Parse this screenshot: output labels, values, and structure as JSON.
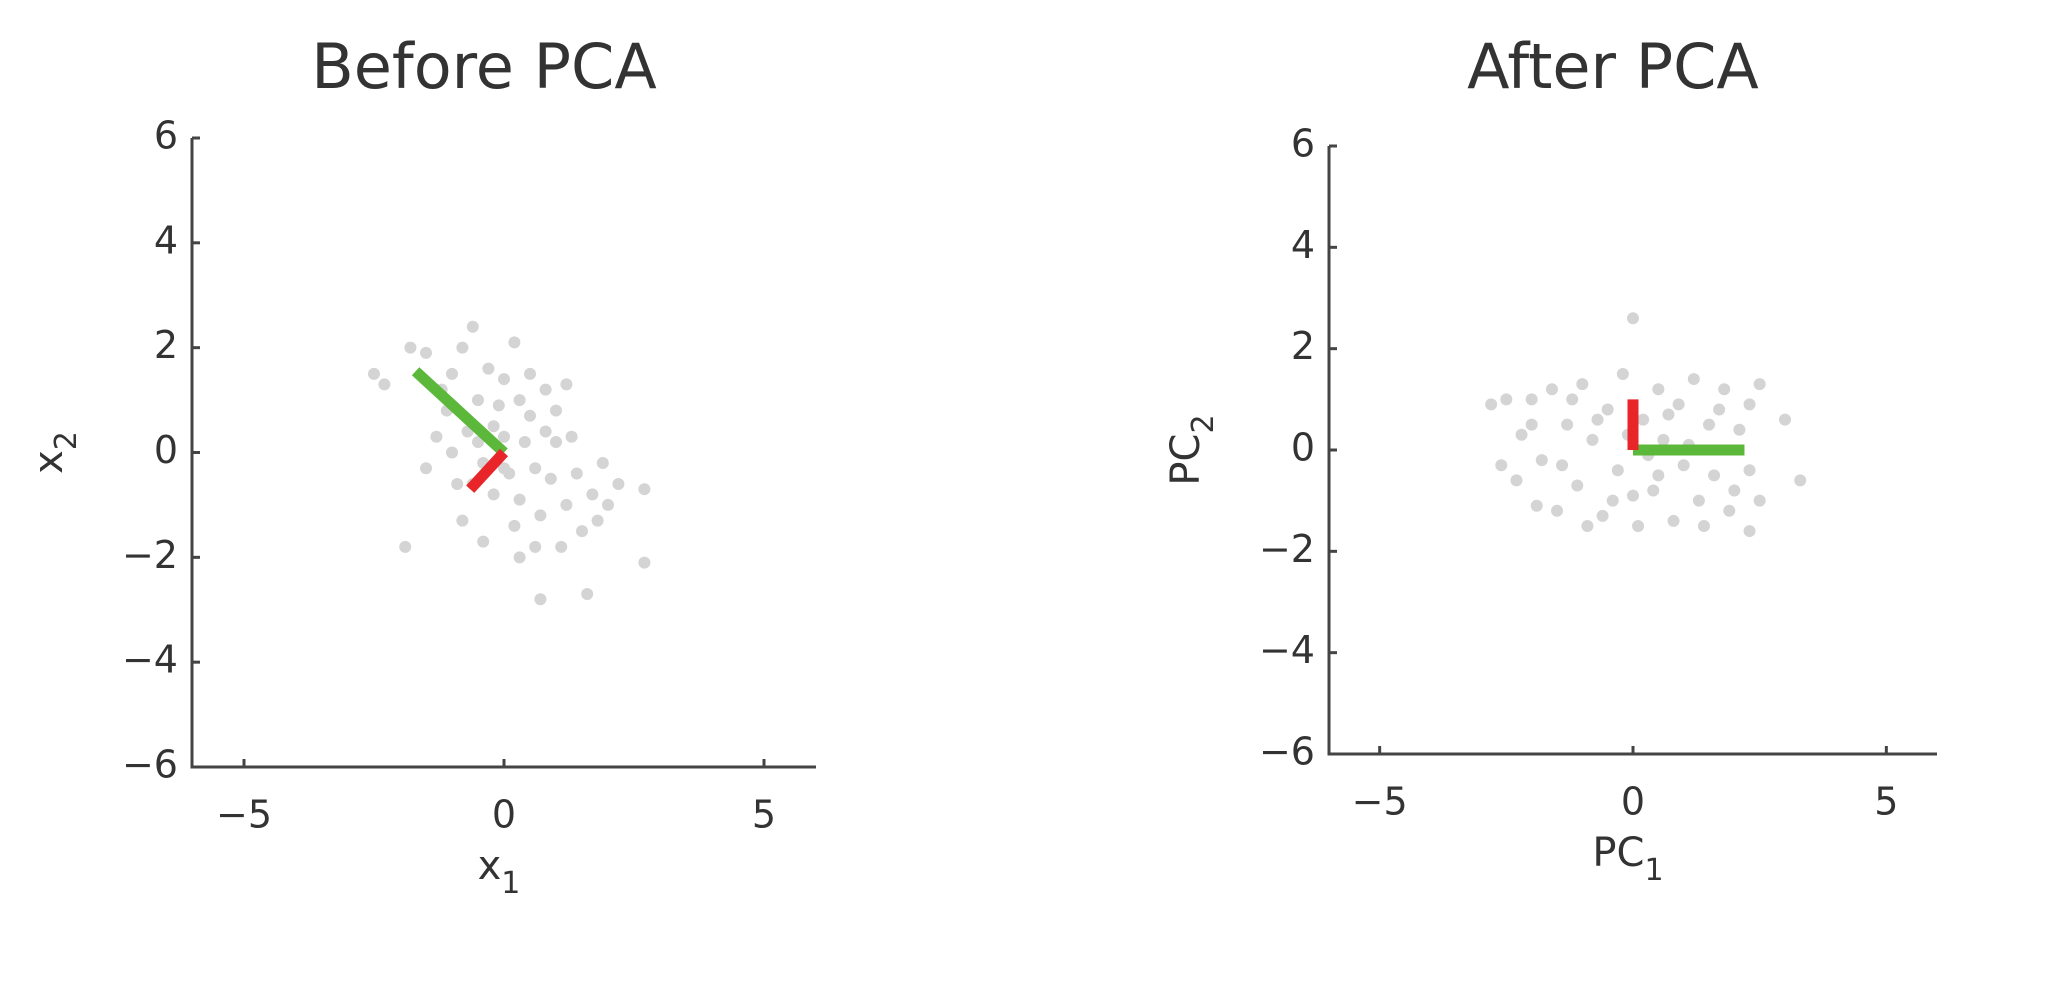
{
  "chart_data": [
    {
      "type": "scatter",
      "title": "Before PCA",
      "x_label": {
        "text": "x",
        "sub": "1"
      },
      "y_label": {
        "text": "x",
        "sub": "2"
      },
      "xlim": [
        -6,
        6
      ],
      "ylim": [
        -6,
        6
      ],
      "xticks": [
        {
          "value": -5,
          "label": "−5"
        },
        0,
        5
      ],
      "yticks": [
        {
          "value": -6,
          "label": "−6"
        },
        {
          "value": -4,
          "label": "−4"
        },
        {
          "value": -2,
          "label": "−2"
        },
        0,
        2,
        4,
        6
      ],
      "points": {
        "color": "#d4d4d4",
        "x": [
          -2.5,
          -2.3,
          -1.8,
          -1.5,
          -1.2,
          -1.0,
          -0.8,
          -0.6,
          -0.5,
          -0.3,
          -0.2,
          0,
          0.2,
          0.3,
          0.5,
          0.8,
          1.0,
          1.2,
          -1.9,
          -1.5,
          -1.3,
          -1.0,
          -0.9,
          -0.7,
          -0.4,
          -0.2,
          0,
          0.1,
          0.3,
          0.4,
          0.6,
          0.7,
          0.9,
          1.0,
          1.2,
          1.4,
          1.5,
          1.7,
          1.9,
          2.0,
          2.2,
          2.7,
          2.7,
          1.6,
          0.7,
          0.3,
          -0.4,
          -0.8,
          0.5,
          -0.5,
          1.1,
          0.2,
          -1.1,
          0.8,
          1.3,
          -0.1,
          0.6,
          1.8,
          -0.6,
          0.0
        ],
        "y": [
          1.5,
          1.3,
          2.0,
          1.9,
          1.2,
          1.5,
          2.0,
          2.4,
          1.0,
          1.6,
          0.5,
          1.4,
          2.1,
          1.0,
          1.5,
          1.2,
          0.8,
          1.3,
          -1.8,
          -0.3,
          0.3,
          0.0,
          -0.6,
          0.4,
          -0.2,
          -0.8,
          0.3,
          -0.4,
          -0.9,
          0.2,
          -0.3,
          -1.2,
          -0.5,
          0.2,
          -1.0,
          -0.4,
          -1.5,
          -0.8,
          -0.2,
          -1.0,
          -0.6,
          -0.7,
          -2.1,
          -2.7,
          -2.8,
          -2.0,
          -1.7,
          -1.3,
          0.7,
          0.2,
          -1.8,
          -1.4,
          0.8,
          0.4,
          0.3,
          0.9,
          -1.8,
          -1.3,
          -0.6,
          -0.3
        ]
      },
      "vectors": [
        {
          "color": "#5cb83a",
          "x": [
            0,
            -1.7
          ],
          "y": [
            0,
            1.55
          ]
        },
        {
          "color": "#e8262a",
          "x": [
            0,
            -0.65
          ],
          "y": [
            0,
            -0.7
          ]
        }
      ]
    },
    {
      "type": "scatter",
      "title": "After PCA",
      "x_label": {
        "text": "PC",
        "sub": "1"
      },
      "y_label": {
        "text": "PC",
        "sub": "2"
      },
      "xlim": [
        -6,
        6
      ],
      "ylim": [
        -6,
        6
      ],
      "xticks": [
        {
          "value": -5,
          "label": "−5"
        },
        0,
        5
      ],
      "yticks": [
        {
          "value": -6,
          "label": "−6"
        },
        {
          "value": -4,
          "label": "−4"
        },
        {
          "value": -2,
          "label": "−2"
        },
        0,
        2,
        4,
        6
      ],
      "points": {
        "color": "#d4d4d4",
        "x": [
          -2.8,
          -2.5,
          -2.2,
          -2.3,
          -2.0,
          -1.8,
          -1.6,
          -1.5,
          -1.3,
          -1.1,
          -1.0,
          -0.8,
          -0.6,
          -0.5,
          -0.3,
          -0.2,
          0,
          0.1,
          0.2,
          0.4,
          0.5,
          0.6,
          0.8,
          0.9,
          1.0,
          1.2,
          1.3,
          1.5,
          1.6,
          1.8,
          1.9,
          2.1,
          2.3,
          2.3,
          2.5,
          2.3,
          2.5,
          3.0,
          3.3,
          -2.6,
          -1.9,
          -0.9,
          -0.1,
          0.3,
          0.7,
          1.1,
          -1.4,
          -0.4,
          1.7,
          0.0,
          -0.7,
          2.0,
          -2.0,
          1.4,
          -1.2,
          0.5
        ],
        "y": [
          0.9,
          1.0,
          0.3,
          -0.6,
          1.0,
          -0.2,
          1.2,
          -1.2,
          0.5,
          -0.7,
          1.3,
          0.2,
          -1.3,
          0.8,
          -0.4,
          1.5,
          2.6,
          -1.5,
          0.6,
          -0.8,
          1.2,
          0.2,
          -1.4,
          0.9,
          -0.3,
          1.4,
          -1.0,
          0.5,
          -0.5,
          1.2,
          -1.2,
          0.4,
          -0.4,
          0.9,
          -1.0,
          -1.6,
          1.3,
          0.6,
          -0.6,
          -0.3,
          -1.1,
          -1.5,
          0.3,
          -0.1,
          0.7,
          0.1,
          -0.3,
          -1.0,
          0.8,
          -0.9,
          0.6,
          -0.8,
          0.5,
          -1.5,
          1.0,
          -0.5
        ]
      },
      "vectors": [
        {
          "color": "#5cb83a",
          "x": [
            0,
            2.2
          ],
          "y": [
            0,
            0
          ]
        },
        {
          "color": "#e8262a",
          "x": [
            0,
            0
          ],
          "y": [
            0,
            1
          ]
        }
      ]
    }
  ]
}
